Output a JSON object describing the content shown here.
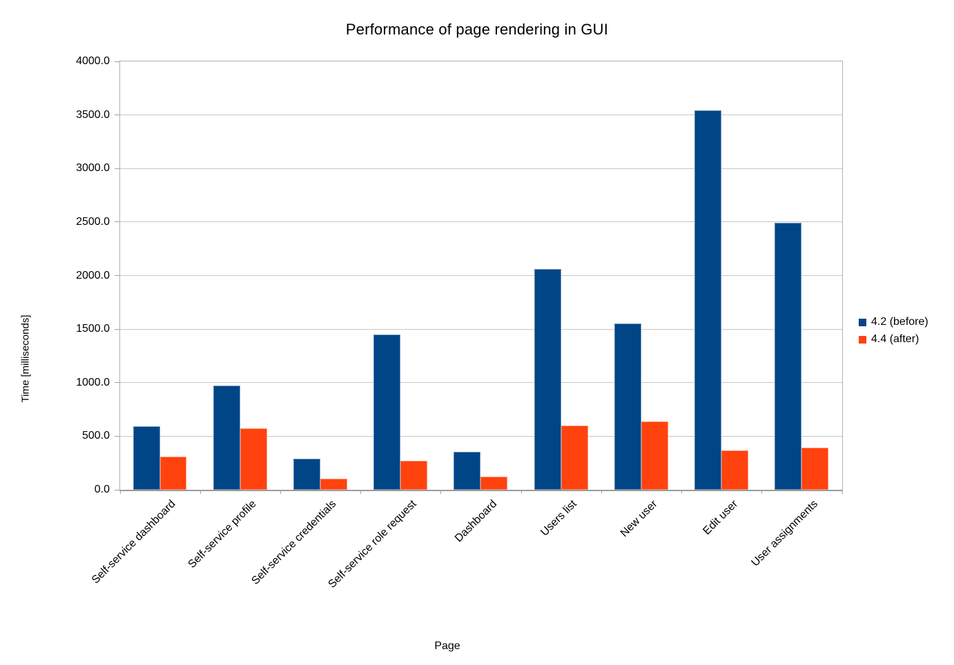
{
  "title": "Performance of page rendering in GUI",
  "chart_data": {
    "type": "bar",
    "title": "Performance of page rendering in GUI",
    "xlabel": "Page",
    "ylabel": "Time [milliseconds]",
    "ylim": [
      0,
      4000
    ],
    "ytick_step": 500,
    "ytick_labels": [
      "0.0",
      "500.0",
      "1000.0",
      "1500.0",
      "2000.0",
      "2500.0",
      "3000.0",
      "3500.0",
      "4000.0"
    ],
    "grid": true,
    "legend_position": "right",
    "categories": [
      "Self-service dashboard",
      "Self-service profile",
      "Self-service credentials",
      "Self-service role request",
      "Dashboard",
      "Users list",
      "New user",
      "Edit user",
      "User assignments"
    ],
    "series": [
      {
        "name": "4.2 (before)",
        "color": "#004586",
        "values": [
          590,
          970,
          290,
          1450,
          355,
          2060,
          1555,
          3540,
          2490
        ]
      },
      {
        "name": "4.4 (after)",
        "color": "#FF420E",
        "values": [
          310,
          575,
          105,
          270,
          120,
          600,
          635,
          370,
          395
        ]
      }
    ]
  },
  "colors": {
    "series_before": "#004586",
    "series_after": "#FF420E",
    "gridline": "#c6c6c6",
    "axis": "#a0a0a0",
    "background": "#ffffff"
  }
}
